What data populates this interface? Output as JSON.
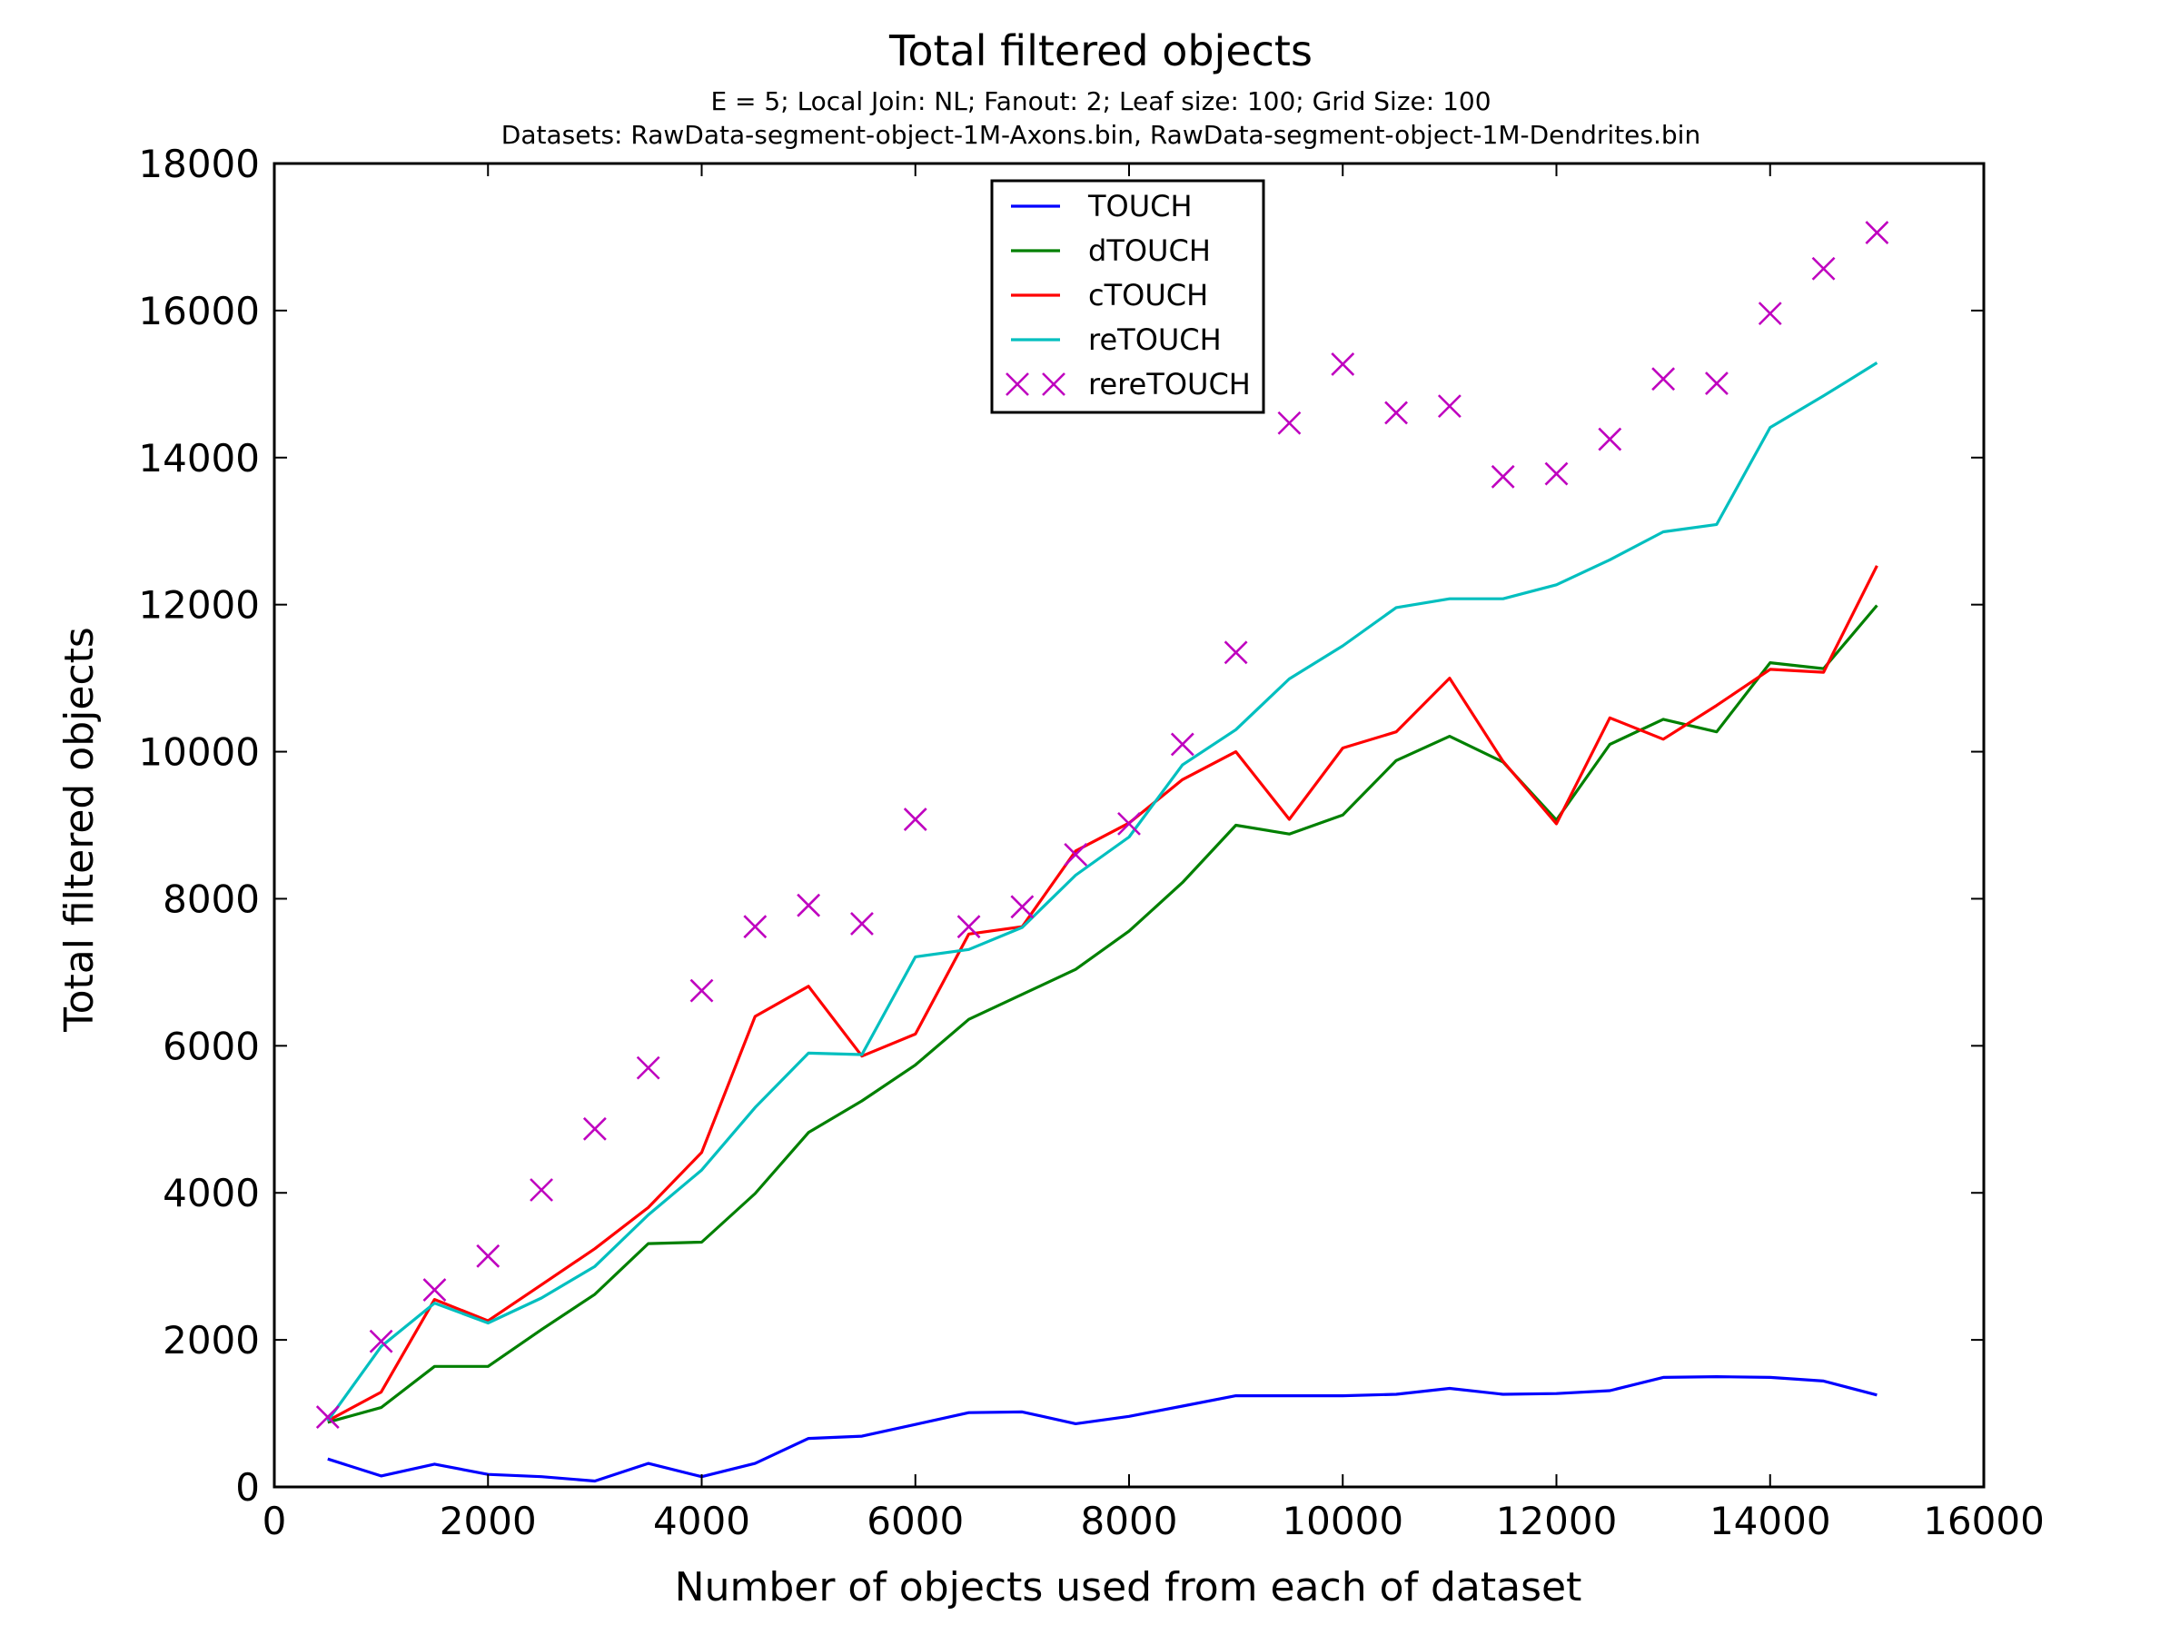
{
  "chart_data": {
    "type": "line",
    "title": "Total filtered objects",
    "subtitle_lines": [
      "E = 5; Local Join: NL; Fanout: 2; Leaf size: 100; Grid Size: 100",
      "Datasets: RawData-segment-object-1M-Axons.bin, RawData-segment-object-1M-Dendrites.bin"
    ],
    "xlabel": "Number of objects used from each of dataset",
    "ylabel": "Total filtered objects",
    "xlim": [
      0,
      16000
    ],
    "ylim": [
      0,
      18000
    ],
    "x_ticks": [
      "0",
      "2000",
      "4000",
      "6000",
      "8000",
      "10000",
      "12000",
      "14000",
      "16000"
    ],
    "y_ticks": [
      "0",
      "2000",
      "4000",
      "6000",
      "8000",
      "10000",
      "12000",
      "14000",
      "16000",
      "18000"
    ],
    "grid": false,
    "legend_position": "top-center",
    "x": [
      500,
      1000,
      1500,
      2000,
      2500,
      3000,
      3500,
      4000,
      4500,
      5000,
      5500,
      6000,
      6500,
      7000,
      7500,
      8000,
      8500,
      9000,
      9500,
      10000,
      10500,
      11000,
      11500,
      12000,
      12500,
      13000,
      13500,
      14000,
      14500,
      15000
    ],
    "series": [
      {
        "name": "TOUCH",
        "style": "line",
        "color": "#0000ff",
        "values": [
          380,
          150,
          310,
          170,
          140,
          80,
          320,
          140,
          320,
          660,
          690,
          850,
          1010,
          1020,
          860,
          960,
          1100,
          1240,
          1240,
          1240,
          1260,
          1340,
          1260,
          1270,
          1310,
          1490,
          1500,
          1490,
          1440,
          1250
        ]
      },
      {
        "name": "dTOUCH",
        "style": "line",
        "color": "#008000",
        "values": [
          880,
          1080,
          1640,
          1640,
          2140,
          2620,
          3310,
          3330,
          3990,
          4820,
          5250,
          5740,
          6360,
          6700,
          7040,
          7560,
          8220,
          9000,
          8880,
          9140,
          9880,
          10210,
          9860,
          9070,
          10100,
          10440,
          10270,
          11210,
          11130,
          11990
        ]
      },
      {
        "name": "cTOUCH",
        "style": "line",
        "color": "#ff0000",
        "values": [
          900,
          1290,
          2550,
          2260,
          2750,
          3240,
          3800,
          4550,
          6400,
          6810,
          5860,
          6160,
          7520,
          7620,
          8650,
          9030,
          9620,
          10000,
          9080,
          10050,
          10270,
          11000,
          9870,
          9020,
          10460,
          10170,
          10630,
          11120,
          11080,
          12530
        ]
      },
      {
        "name": "reTOUCH",
        "style": "line",
        "color": "#00bfbf",
        "values": [
          900,
          1910,
          2500,
          2230,
          2570,
          3000,
          3700,
          4310,
          5160,
          5900,
          5880,
          7210,
          7310,
          7610,
          8320,
          8840,
          9820,
          10300,
          10990,
          11440,
          11960,
          12080,
          12080,
          12270,
          12610,
          12990,
          13090,
          14410,
          14840,
          15290
        ]
      },
      {
        "name": "rereTOUCH",
        "style": "marker",
        "color": "#bf00bf",
        "values": [
          950,
          1980,
          2680,
          3140,
          4040,
          4870,
          5700,
          6750,
          7620,
          7910,
          7660,
          9080,
          7620,
          7890,
          8600,
          9020,
          10100,
          11350,
          14470,
          15270,
          14610,
          14700,
          13740,
          13780,
          14250,
          15070,
          15010,
          15960,
          16570,
          17060
        ]
      }
    ]
  }
}
